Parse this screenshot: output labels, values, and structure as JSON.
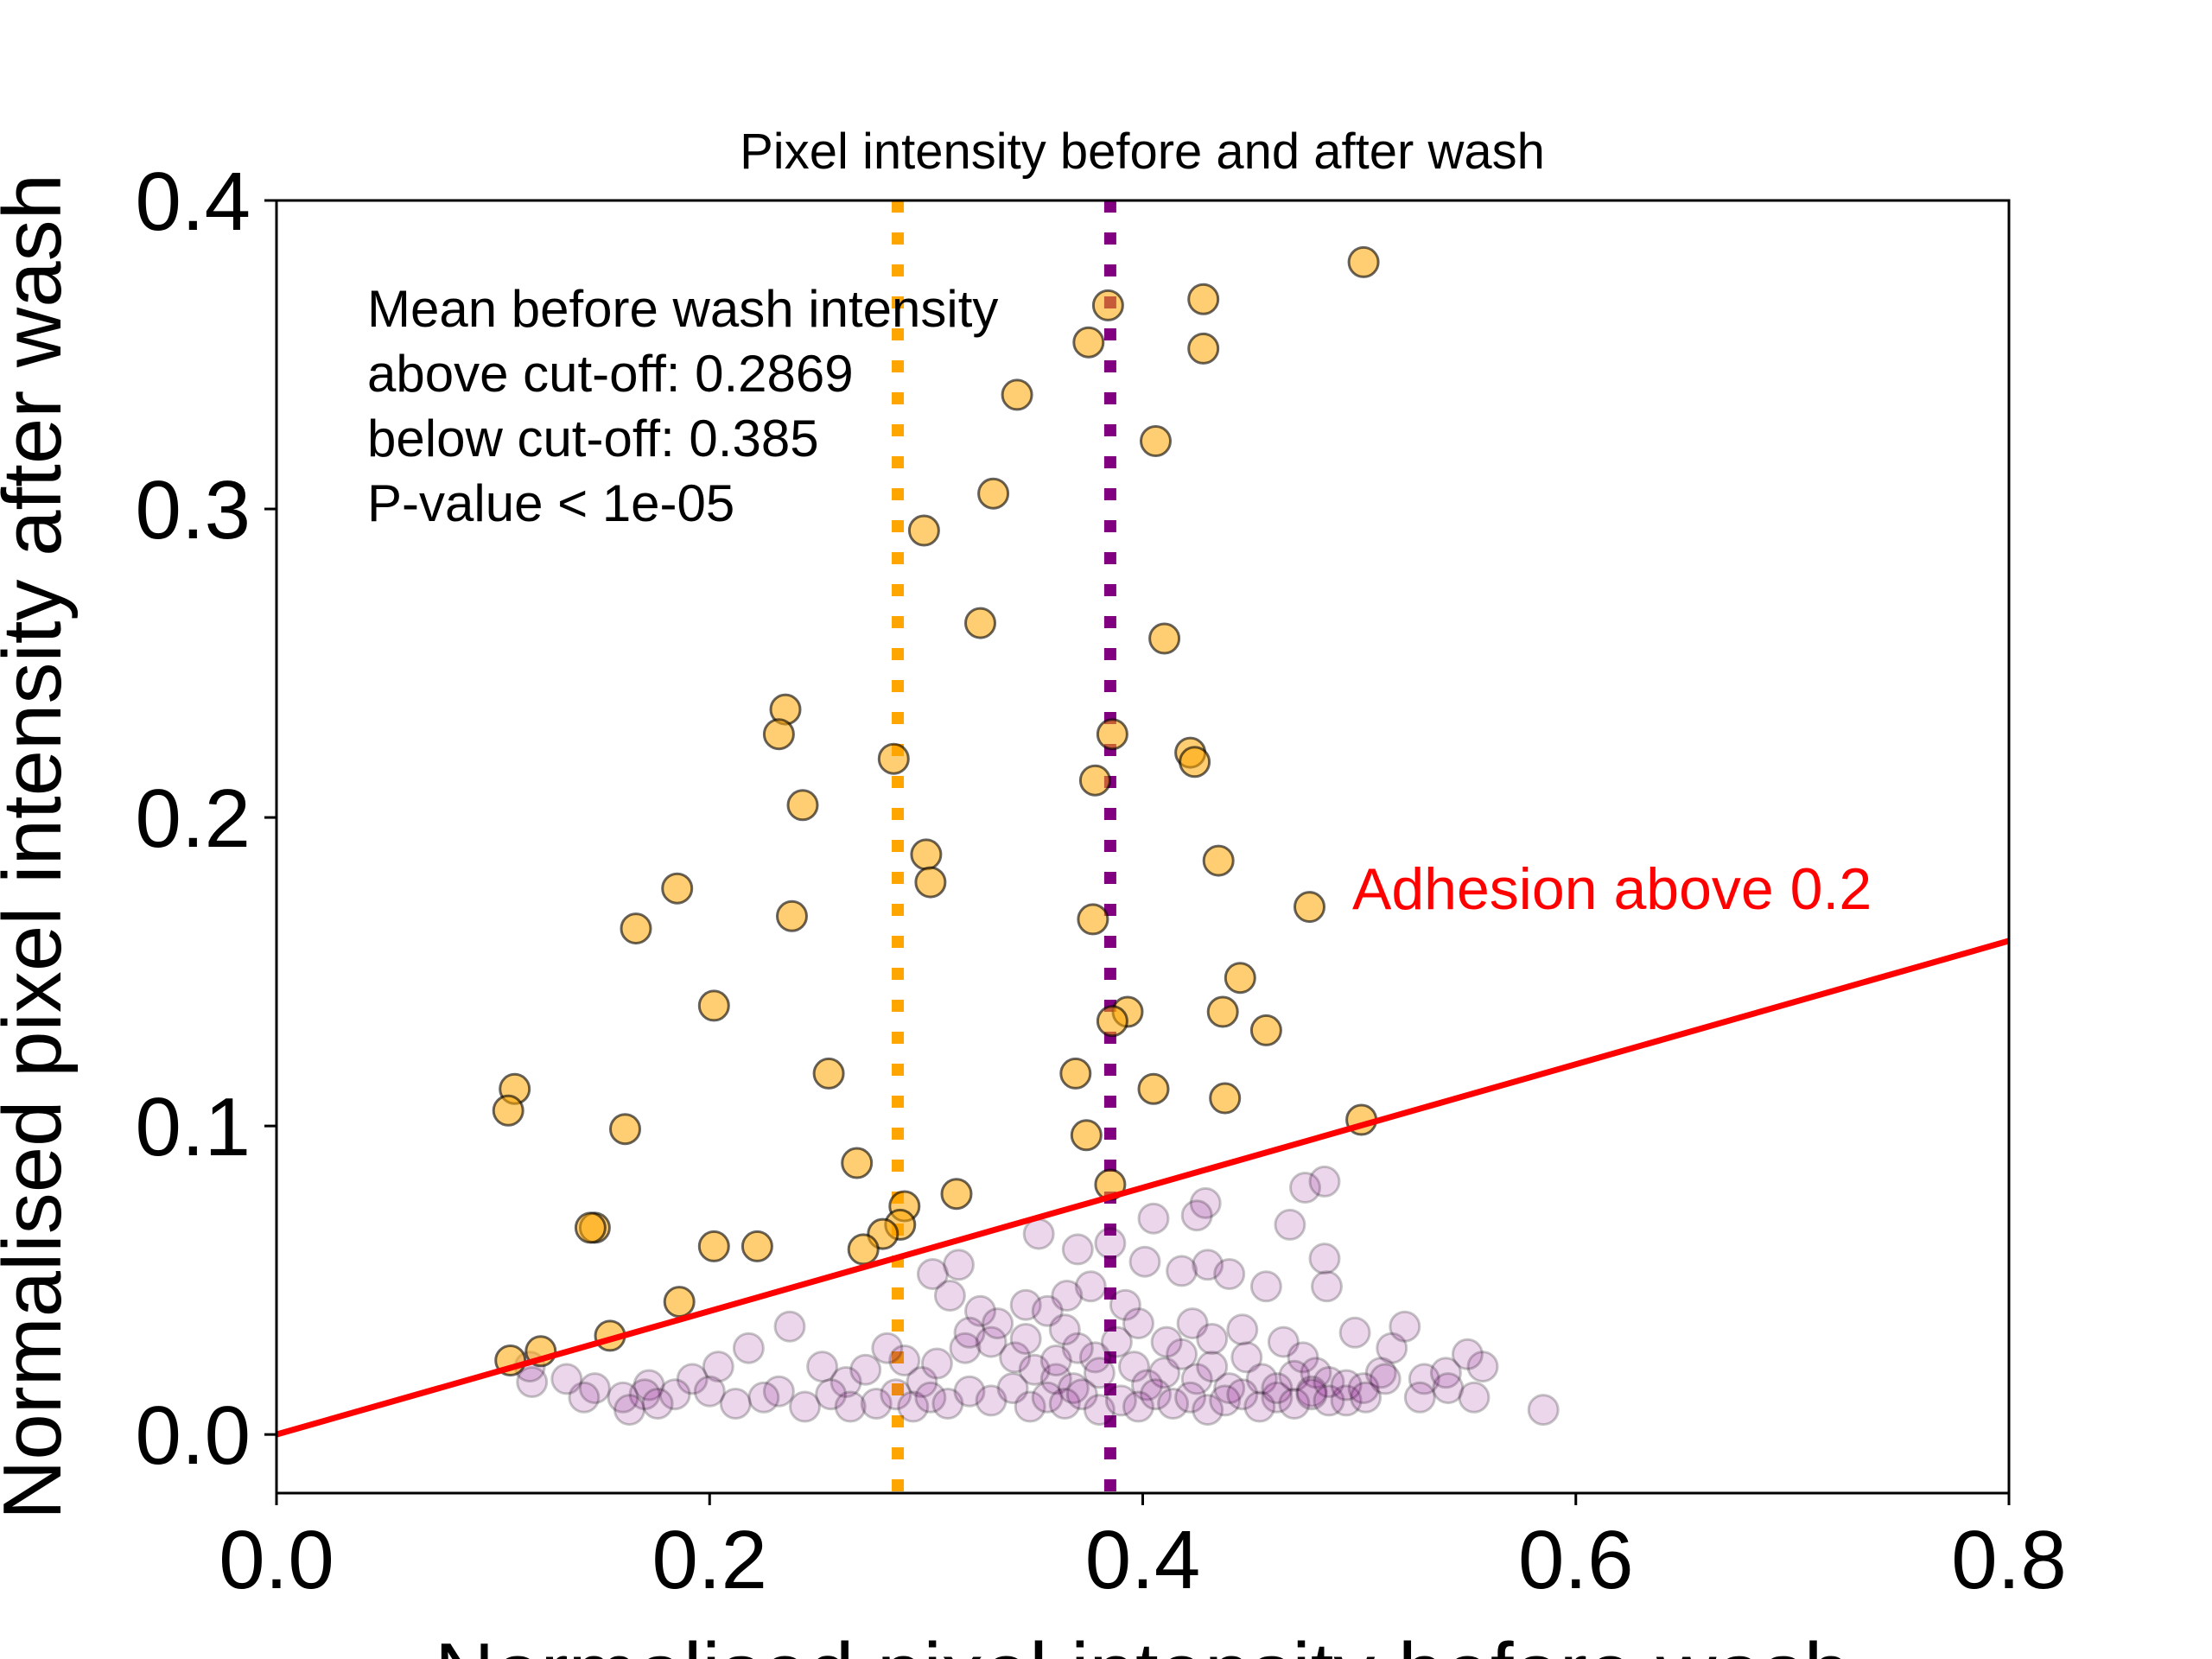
{
  "chart_data": {
    "type": "scatter",
    "title": "Pixel intensity before and after wash",
    "xlabel": "Normalised pixel intensity before wash",
    "ylabel": "Normalised pixel intensity after wash",
    "xlim": [
      0.0,
      0.8
    ],
    "ylim": [
      -0.019,
      0.4
    ],
    "xticks": [
      "0.0",
      "0.2",
      "0.4",
      "0.6",
      "0.8"
    ],
    "yticks": [
      "0.0",
      "0.1",
      "0.2",
      "0.3",
      "0.4"
    ],
    "grid": false,
    "annotation_lines": [
      "Mean before wash intensity",
      "above cut-off: 0.2869",
      "below cut-off: 0.385",
      "P-value < 1e-05"
    ],
    "threshold_label": "Adhesion above 0.2",
    "threshold_line": {
      "slope": 0.2,
      "intercept": 0.0,
      "color": "#ff0000"
    },
    "vlines": [
      {
        "x": 0.2869,
        "color": "#ffa500"
      },
      {
        "x": 0.385,
        "color": "#800080"
      }
    ],
    "series": [
      {
        "color": "#ffa500",
        "points": [
          [
            0.502,
            0.38
          ],
          [
            0.428,
            0.368
          ],
          [
            0.384,
            0.366
          ],
          [
            0.375,
            0.354
          ],
          [
            0.428,
            0.352
          ],
          [
            0.342,
            0.337
          ],
          [
            0.406,
            0.322
          ],
          [
            0.331,
            0.305
          ],
          [
            0.299,
            0.293
          ],
          [
            0.325,
            0.263
          ],
          [
            0.41,
            0.258
          ],
          [
            0.235,
            0.235
          ],
          [
            0.232,
            0.227
          ],
          [
            0.386,
            0.227
          ],
          [
            0.422,
            0.221
          ],
          [
            0.424,
            0.218
          ],
          [
            0.285,
            0.219
          ],
          [
            0.378,
            0.212
          ],
          [
            0.243,
            0.204
          ],
          [
            0.3,
            0.188
          ],
          [
            0.435,
            0.186
          ],
          [
            0.302,
            0.179
          ],
          [
            0.185,
            0.177
          ],
          [
            0.477,
            0.171
          ],
          [
            0.238,
            0.168
          ],
          [
            0.377,
            0.167
          ],
          [
            0.166,
            0.164
          ],
          [
            0.445,
            0.148
          ],
          [
            0.202,
            0.139
          ],
          [
            0.393,
            0.137
          ],
          [
            0.437,
            0.137
          ],
          [
            0.386,
            0.134
          ],
          [
            0.457,
            0.131
          ],
          [
            0.255,
            0.117
          ],
          [
            0.369,
            0.117
          ],
          [
            0.11,
            0.112
          ],
          [
            0.107,
            0.105
          ],
          [
            0.405,
            0.112
          ],
          [
            0.438,
            0.109
          ],
          [
            0.161,
            0.099
          ],
          [
            0.374,
            0.097
          ],
          [
            0.501,
            0.102
          ],
          [
            0.268,
            0.088
          ],
          [
            0.385,
            0.081
          ],
          [
            0.314,
            0.078
          ],
          [
            0.29,
            0.074
          ],
          [
            0.147,
            0.067
          ],
          [
            0.145,
            0.067
          ],
          [
            0.288,
            0.068
          ],
          [
            0.28,
            0.065
          ],
          [
            0.202,
            0.061
          ],
          [
            0.222,
            0.061
          ],
          [
            0.271,
            0.06
          ],
          [
            0.186,
            0.043
          ],
          [
            0.154,
            0.032
          ],
          [
            0.122,
            0.027
          ],
          [
            0.108,
            0.024
          ]
        ]
      },
      {
        "color": "#800080",
        "points": [
          [
            0.585,
            0.008
          ],
          [
            0.557,
            0.022
          ],
          [
            0.55,
            0.026
          ],
          [
            0.53,
            0.018
          ],
          [
            0.515,
            0.028
          ],
          [
            0.498,
            0.033
          ],
          [
            0.51,
            0.02
          ],
          [
            0.475,
            0.08
          ],
          [
            0.484,
            0.082
          ],
          [
            0.468,
            0.068
          ],
          [
            0.484,
            0.057
          ],
          [
            0.485,
            0.048
          ],
          [
            0.457,
            0.048
          ],
          [
            0.429,
            0.075
          ],
          [
            0.425,
            0.071
          ],
          [
            0.405,
            0.07
          ],
          [
            0.385,
            0.062
          ],
          [
            0.37,
            0.06
          ],
          [
            0.352,
            0.065
          ],
          [
            0.43,
            0.055
          ],
          [
            0.44,
            0.052
          ],
          [
            0.418,
            0.053
          ],
          [
            0.401,
            0.056
          ],
          [
            0.376,
            0.048
          ],
          [
            0.365,
            0.045
          ],
          [
            0.346,
            0.042
          ],
          [
            0.315,
            0.055
          ],
          [
            0.303,
            0.052
          ],
          [
            0.311,
            0.045
          ],
          [
            0.325,
            0.04
          ],
          [
            0.356,
            0.04
          ],
          [
            0.392,
            0.042
          ],
          [
            0.423,
            0.036
          ],
          [
            0.446,
            0.034
          ],
          [
            0.465,
            0.03
          ],
          [
            0.474,
            0.025
          ],
          [
            0.48,
            0.02
          ],
          [
            0.521,
            0.035
          ],
          [
            0.54,
            0.02
          ],
          [
            0.237,
            0.035
          ],
          [
            0.218,
            0.028
          ],
          [
            0.204,
            0.022
          ],
          [
            0.192,
            0.018
          ],
          [
            0.172,
            0.016
          ],
          [
            0.17,
            0.013
          ],
          [
            0.16,
            0.012
          ],
          [
            0.147,
            0.015
          ],
          [
            0.142,
            0.012
          ],
          [
            0.134,
            0.018
          ],
          [
            0.118,
            0.017
          ],
          [
            0.117,
            0.022
          ],
          [
            0.184,
            0.013
          ],
          [
            0.212,
            0.01
          ],
          [
            0.232,
            0.014
          ],
          [
            0.244,
            0.009
          ],
          [
            0.252,
            0.022
          ],
          [
            0.263,
            0.017
          ],
          [
            0.272,
            0.021
          ],
          [
            0.282,
            0.028
          ],
          [
            0.29,
            0.024
          ],
          [
            0.298,
            0.017
          ],
          [
            0.305,
            0.023
          ],
          [
            0.318,
            0.028
          ],
          [
            0.33,
            0.03
          ],
          [
            0.341,
            0.025
          ],
          [
            0.35,
            0.021
          ],
          [
            0.36,
            0.018
          ],
          [
            0.368,
            0.015
          ],
          [
            0.378,
            0.025
          ],
          [
            0.388,
            0.03
          ],
          [
            0.396,
            0.022
          ],
          [
            0.402,
            0.016
          ],
          [
            0.41,
            0.02
          ],
          [
            0.418,
            0.026
          ],
          [
            0.425,
            0.018
          ],
          [
            0.432,
            0.022
          ],
          [
            0.44,
            0.015
          ],
          [
            0.448,
            0.025
          ],
          [
            0.455,
            0.018
          ],
          [
            0.462,
            0.012
          ],
          [
            0.47,
            0.019
          ],
          [
            0.478,
            0.014
          ],
          [
            0.486,
            0.017
          ],
          [
            0.494,
            0.011
          ],
          [
            0.502,
            0.015
          ],
          [
            0.277,
            0.01
          ],
          [
            0.286,
            0.013
          ],
          [
            0.294,
            0.009
          ],
          [
            0.302,
            0.012
          ],
          [
            0.31,
            0.01
          ],
          [
            0.32,
            0.014
          ],
          [
            0.33,
            0.011
          ],
          [
            0.34,
            0.015
          ],
          [
            0.348,
            0.009
          ],
          [
            0.356,
            0.012
          ],
          [
            0.364,
            0.01
          ],
          [
            0.372,
            0.013
          ],
          [
            0.38,
            0.008
          ],
          [
            0.39,
            0.011
          ],
          [
            0.398,
            0.009
          ],
          [
            0.406,
            0.013
          ],
          [
            0.414,
            0.01
          ],
          [
            0.422,
            0.012
          ],
          [
            0.43,
            0.008
          ],
          [
            0.438,
            0.011
          ],
          [
            0.446,
            0.013
          ],
          [
            0.454,
            0.009
          ],
          [
            0.462,
            0.015
          ],
          [
            0.47,
            0.01
          ],
          [
            0.478,
            0.013
          ],
          [
            0.486,
            0.011
          ],
          [
            0.494,
            0.016
          ],
          [
            0.503,
            0.012
          ],
          [
            0.512,
            0.018
          ],
          [
            0.528,
            0.012
          ],
          [
            0.541,
            0.015
          ],
          [
            0.553,
            0.012
          ],
          [
            0.38,
            0.02
          ],
          [
            0.37,
            0.028
          ],
          [
            0.36,
            0.024
          ],
          [
            0.411,
            0.03
          ],
          [
            0.432,
            0.031
          ],
          [
            0.398,
            0.036
          ],
          [
            0.364,
            0.034
          ],
          [
            0.333,
            0.036
          ],
          [
            0.32,
            0.033
          ],
          [
            0.346,
            0.031
          ],
          [
            0.256,
            0.013
          ],
          [
            0.265,
            0.009
          ],
          [
            0.225,
            0.012
          ],
          [
            0.2,
            0.014
          ],
          [
            0.176,
            0.01
          ],
          [
            0.163,
            0.008
          ]
        ]
      }
    ]
  }
}
